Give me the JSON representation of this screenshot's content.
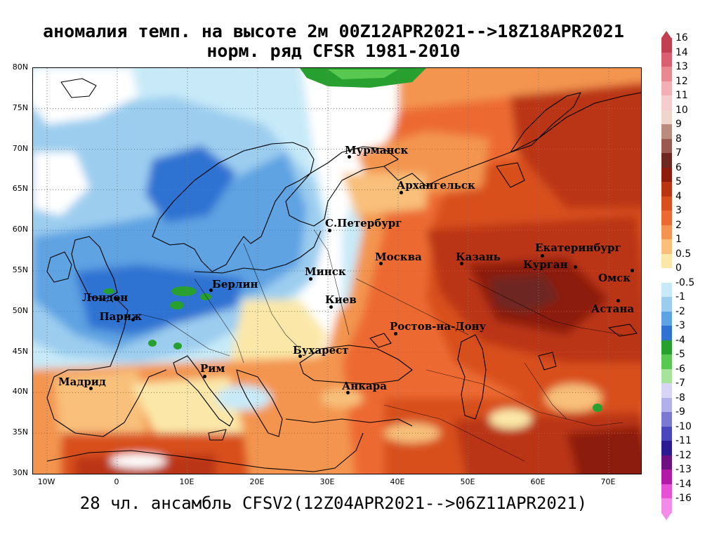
{
  "title": {
    "line1": "аномалия темп. на высоте 2м 00Z12APR2021-->18Z18APR2021",
    "line2": "норм. ряд CFSR 1981-2010"
  },
  "footer": "28 чл. ансамбль CFSV2(12Z04APR2021-->06Z11APR2021)",
  "map": {
    "lat_labels": [
      "80N",
      "75N",
      "70N",
      "65N",
      "60N",
      "55N",
      "50N",
      "45N",
      "40N",
      "35N",
      "30N"
    ],
    "lon_labels": [
      "10W",
      "0",
      "10E",
      "20E",
      "30E",
      "40E",
      "50E",
      "60E",
      "70E"
    ],
    "cities": [
      {
        "name": "Мурманск",
        "lon": 33.1,
        "lat": 69.0
      },
      {
        "name": "Архангельск",
        "lon": 40.5,
        "lat": 64.6
      },
      {
        "name": "С.Петербург",
        "lon": 30.3,
        "lat": 59.9
      },
      {
        "name": "Москва",
        "lon": 37.6,
        "lat": 55.8
      },
      {
        "name": "Казань",
        "lon": 49.1,
        "lat": 55.8
      },
      {
        "name": "Екатеринбург",
        "lon": 60.6,
        "lat": 56.8
      },
      {
        "name": "Курган",
        "lon": 65.3,
        "lat": 55.4
      },
      {
        "name": "Омск",
        "lon": 73.4,
        "lat": 55.0
      },
      {
        "name": "Астана",
        "lon": 71.4,
        "lat": 51.2
      },
      {
        "name": "Минск",
        "lon": 27.6,
        "lat": 53.9
      },
      {
        "name": "Киев",
        "lon": 30.5,
        "lat": 50.5
      },
      {
        "name": "Берлин",
        "lon": 13.4,
        "lat": 52.5
      },
      {
        "name": "Лондон",
        "lon": -0.1,
        "lat": 51.5
      },
      {
        "name": "Париж",
        "lon": 2.35,
        "lat": 48.9
      },
      {
        "name": "Ростов-на-Дону",
        "lon": 39.7,
        "lat": 47.2
      },
      {
        "name": "Бухарест",
        "lon": 26.1,
        "lat": 44.4
      },
      {
        "name": "Рим",
        "lon": 12.5,
        "lat": 41.9
      },
      {
        "name": "Мадрид",
        "lon": -3.7,
        "lat": 40.4
      },
      {
        "name": "Анкара",
        "lon": 32.9,
        "lat": 39.9
      }
    ]
  },
  "colorbar": {
    "levels": [
      "16",
      "14",
      "13",
      "12",
      "11",
      "10",
      "9",
      "8",
      "7",
      "6",
      "5",
      "4",
      "3",
      "2",
      "1",
      "0.5",
      "0",
      "-0.5",
      "-1",
      "-2",
      "-3",
      "-4",
      "-5",
      "-6",
      "-7",
      "-8",
      "-9",
      "-10",
      "-11",
      "-12",
      "-13",
      "-14",
      "-16"
    ],
    "colors": [
      "#c04050",
      "#d86070",
      "#e88890",
      "#f3b0b4",
      "#f6cdcd",
      "#eed6cc",
      "#ba8c7e",
      "#9a5a50",
      "#6e2820",
      "#8c1c0c",
      "#ba3512",
      "#d8501c",
      "#ec6a30",
      "#f39550",
      "#f8c07a",
      "#fbe8a8",
      "#ffffff",
      "#c8eaf8",
      "#9ccdef",
      "#5ea3e2",
      "#2f72d2",
      "#28a030",
      "#58c850",
      "#a6e49c",
      "#d6d6f4",
      "#b0b0ea",
      "#7a7ad2",
      "#4848bc",
      "#2a1c90",
      "#6e1080",
      "#b01ca8",
      "#e650d4",
      "#f28ce8"
    ]
  }
}
